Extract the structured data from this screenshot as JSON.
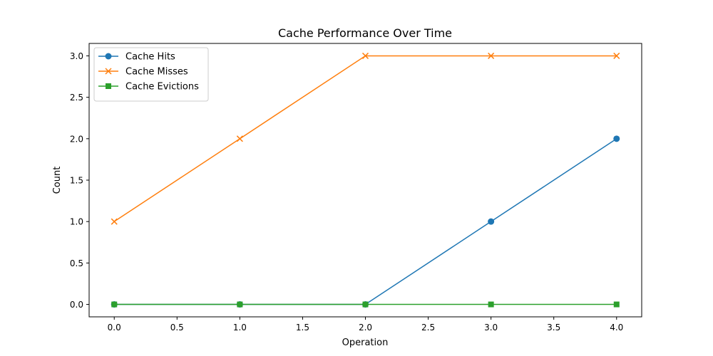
{
  "chart_data": {
    "type": "line",
    "title": "Cache Performance Over Time",
    "xlabel": "Operation",
    "ylabel": "Count",
    "x": [
      0,
      1,
      2,
      3,
      4
    ],
    "xlim": [
      -0.2,
      4.2
    ],
    "ylim": [
      -0.15,
      3.15
    ],
    "xticks": [
      0.0,
      0.5,
      1.0,
      1.5,
      2.0,
      2.5,
      3.0,
      3.5,
      4.0
    ],
    "xtick_labels": [
      "0.0",
      "0.5",
      "1.0",
      "1.5",
      "2.0",
      "2.5",
      "3.0",
      "3.5",
      "4.0"
    ],
    "yticks": [
      0.0,
      0.5,
      1.0,
      1.5,
      2.0,
      2.5,
      3.0
    ],
    "ytick_labels": [
      "0.0",
      "0.5",
      "1.0",
      "1.5",
      "2.0",
      "2.5",
      "3.0"
    ],
    "grid": false,
    "legend_position": "top-left",
    "series": [
      {
        "name": "Cache Hits",
        "values": [
          0,
          0,
          0,
          1,
          2
        ],
        "color": "#1f77b4",
        "marker": "circle"
      },
      {
        "name": "Cache Misses",
        "values": [
          1,
          2,
          3,
          3,
          3
        ],
        "color": "#ff7f0e",
        "marker": "x"
      },
      {
        "name": "Cache Evictions",
        "values": [
          0,
          0,
          0,
          0,
          0
        ],
        "color": "#2ca02c",
        "marker": "square"
      }
    ]
  }
}
